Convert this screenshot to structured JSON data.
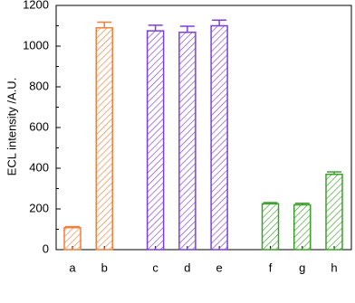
{
  "chart_data": {
    "type": "bar",
    "y_label": "ECL intensity /A.U.",
    "categories": [
      "a",
      "b",
      "c",
      "d",
      "e",
      "f",
      "g",
      "h"
    ],
    "values": [
      108,
      1090,
      1075,
      1068,
      1100,
      225,
      220,
      370
    ],
    "errors": [
      5,
      28,
      28,
      30,
      28,
      6,
      8,
      12
    ],
    "colors": [
      "#f07f3c",
      "#f07f3c",
      "#7b3fe0",
      "#7b3fe0",
      "#7b3fe0",
      "#3aa02a",
      "#3aa02a",
      "#3aa02a"
    ],
    "hatch": true,
    "ylim": [
      0,
      1200
    ],
    "yticks": [
      0,
      200,
      400,
      600,
      800,
      1000,
      1200
    ]
  }
}
